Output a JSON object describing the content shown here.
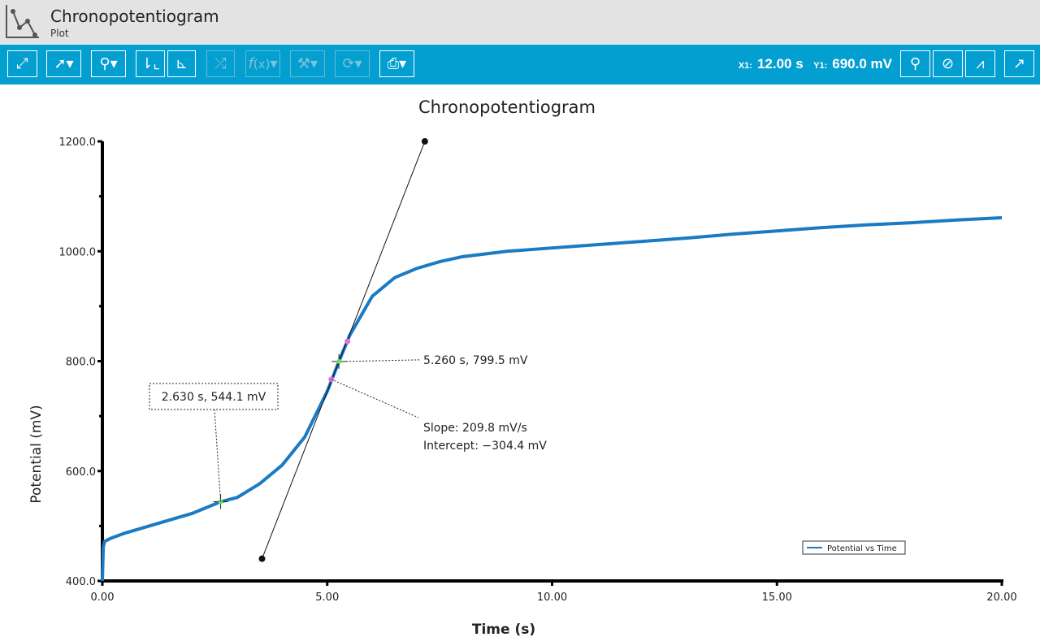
{
  "app": {
    "title": "Chronopotentiogram",
    "subtitle": "Plot",
    "icon": "line-chart-icon"
  },
  "toolbar": {
    "buttons": [
      {
        "name": "zoom-to-fit-button",
        "icon": "expand-icon",
        "enabled": true
      },
      {
        "name": "pointer-button",
        "icon": "cursor-arrow-icon",
        "enabled": true
      },
      {
        "name": "zoom-button",
        "icon": "magnifier-icon",
        "enabled": true
      },
      {
        "name": "axis-button-1",
        "icon": "axis-arrows-icon",
        "enabled": true
      },
      {
        "name": "axis-button-2",
        "icon": "axis-tangent-icon",
        "enabled": true
      },
      {
        "name": "shuffle-button",
        "icon": "shuffle-icon",
        "enabled": false
      },
      {
        "name": "function-button",
        "icon": "function-icon",
        "enabled": false
      },
      {
        "name": "tools-button",
        "icon": "wrench-icon",
        "enabled": false
      },
      {
        "name": "refresh-button",
        "icon": "cycle-gear-icon",
        "enabled": false
      },
      {
        "name": "print-button",
        "icon": "printer-icon",
        "enabled": true
      },
      {
        "name": "pin-button",
        "icon": "pin-icon",
        "enabled": true
      },
      {
        "name": "hide-button",
        "icon": "eye-slash-icon",
        "enabled": true
      },
      {
        "name": "plot-axis-button",
        "icon": "plot-axis-icon",
        "enabled": true
      },
      {
        "name": "export-button",
        "icon": "export-icon",
        "enabled": true
      }
    ],
    "x1_label": "X1:",
    "x1_value": "12.00 s",
    "y1_label": "Y1:",
    "y1_value": "690.0 mV"
  },
  "chart_data": {
    "type": "line",
    "title": "Chronopotentiogram",
    "xlabel": "Time (s)",
    "ylabel": "Potential (mV)",
    "xlim": [
      0,
      20
    ],
    "ylim": [
      400,
      1200
    ],
    "xticks": [
      "0.00",
      "5.00",
      "10.00",
      "15.00",
      "20.00"
    ],
    "yticks": [
      "400.0",
      "600.0",
      "800.0",
      "1000.0",
      "1200.0"
    ],
    "grid": false,
    "legend_position": "right",
    "series": [
      {
        "name": "Potential vs Time",
        "color": "#1a7bc4",
        "x": [
          0,
          0.02,
          0.05,
          0.2,
          0.5,
          1,
          1.5,
          2,
          2.63,
          3,
          3.5,
          4,
          4.5,
          5,
          5.26,
          5.5,
          6,
          6.5,
          7,
          7.5,
          8,
          9,
          10,
          11,
          12,
          13,
          14,
          15,
          16,
          17,
          18,
          19,
          20
        ],
        "y": [
          400,
          462,
          472,
          478,
          487,
          499,
          511,
          523,
          544.1,
          552,
          577,
          611,
          662,
          745,
          799.5,
          847,
          918,
          952,
          969,
          981,
          990,
          1000,
          1006,
          1012,
          1018,
          1024,
          1031,
          1037,
          1043,
          1048,
          1052,
          1057,
          1061
        ]
      }
    ],
    "tangent": {
      "x": [
        3.55,
        7.17
      ],
      "y": [
        440.4,
        1200
      ],
      "slope_label": "Slope: 209.8 mV/s",
      "intercept_label": "Intercept: −304.4 mV",
      "fit_points": [
        {
          "x": 5.09,
          "y": 767
        },
        {
          "x": 5.45,
          "y": 836
        }
      ]
    },
    "markers": [
      {
        "x": 2.63,
        "y": 544.1,
        "label": "2.630 s, 544.1 mV"
      },
      {
        "x": 5.26,
        "y": 799.5,
        "label": "5.260 s, 799.5 mV"
      }
    ]
  }
}
